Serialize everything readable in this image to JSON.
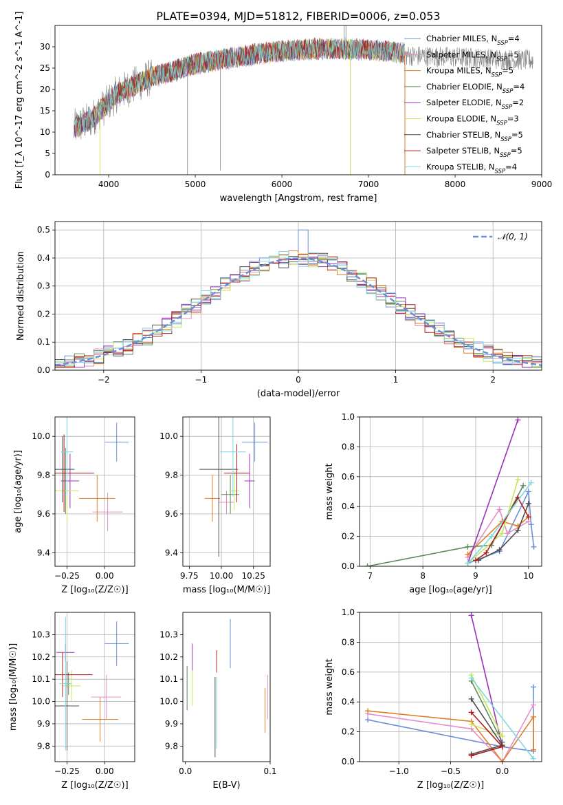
{
  "title": "PLATE=0394, MJD=51812, FIBERID=0006, z=0.053",
  "colors": {
    "Chabrier MILES": "#6a8fd9",
    "Salpeter MILES": "#e68ec8",
    "Kroupa MILES": "#e07f2a",
    "Chabrier ELODIE": "#5c8a5c",
    "Salpeter ELODIE": "#9b30b8",
    "Kroupa ELODIE": "#c8e65a",
    "Chabrier STELIB": "#4d4d4d",
    "Salpeter STELIB": "#b01a1a",
    "Kroupa STELIB": "#7fd8e0",
    "gray_spectrum": "#808080",
    "grid": "#b0b0b0"
  },
  "chart_data": [
    {
      "id": "spectrum",
      "type": "line",
      "xlabel": "wavelength [Angstrom, rest frame]",
      "ylabel": "Flux [f_λ 10^-17 erg cm^-2 s^-1 A^-1]",
      "xlim": [
        3380,
        9000
      ],
      "ylim": [
        0,
        35
      ],
      "xticks": [
        4000,
        5000,
        6000,
        7000,
        8000,
        9000
      ],
      "yticks": [
        0,
        5,
        10,
        15,
        20,
        25,
        30
      ],
      "grid": false,
      "legend_position": "right",
      "legend": [
        {
          "base": "Chabrier MILES, N",
          "sub": "SSP",
          "tail": "=4"
        },
        {
          "base": "Salpeter MILES, N",
          "sub": "SSP",
          "tail": "=5"
        },
        {
          "base": "Kroupa MILES, N",
          "sub": "SSP",
          "tail": "=5"
        },
        {
          "base": "Chabrier ELODIE, N",
          "sub": "SSP",
          "tail": "=4"
        },
        {
          "base": "Salpeter ELODIE, N",
          "sub": "SSP",
          "tail": "=2"
        },
        {
          "base": "Kroupa ELODIE, N",
          "sub": "SSP",
          "tail": "=3"
        },
        {
          "base": "Chabrier STELIB, N",
          "sub": "SSP",
          "tail": "=5"
        },
        {
          "base": "Salpeter STELIB, N",
          "sub": "SSP",
          "tail": "=5"
        },
        {
          "base": "Kroupa STELIB, N",
          "sub": "SSP",
          "tail": "=4"
        }
      ],
      "continuum": [
        [
          3600,
          11
        ],
        [
          3700,
          12
        ],
        [
          3800,
          13
        ],
        [
          3900,
          15
        ],
        [
          4000,
          17
        ],
        [
          4100,
          19
        ],
        [
          4200,
          20
        ],
        [
          4300,
          21
        ],
        [
          4500,
          23
        ],
        [
          4700,
          24
        ],
        [
          5000,
          26
        ],
        [
          5300,
          27
        ],
        [
          5600,
          28
        ],
        [
          6000,
          29
        ],
        [
          6400,
          29.5
        ],
        [
          6800,
          29.5
        ],
        [
          7200,
          29
        ],
        [
          7400,
          28.5
        ]
      ],
      "observed_end": 8900,
      "spikes": [
        [
          3900,
          0
        ],
        [
          4910,
          0
        ],
        [
          5290,
          1
        ],
        [
          6790,
          0
        ],
        [
          6740,
          35
        ],
        [
          6720,
          35
        ],
        [
          7420,
          0
        ]
      ]
    },
    {
      "id": "residuals",
      "type": "line",
      "xlabel": "(data-model)/error",
      "ylabel": "Normed distribution",
      "xlim": [
        -2.5,
        2.5
      ],
      "ylim": [
        0,
        0.53
      ],
      "xticks": [
        -2,
        -1,
        0,
        1,
        2
      ],
      "yticks": [
        0.0,
        0.1,
        0.2,
        0.3,
        0.4,
        0.5
      ],
      "grid": true,
      "legend_position": "top-right",
      "gaussian_label": "𝒩(0, 1)",
      "bin_width": 0.1,
      "peak_bin": {
        "x": 0.0,
        "value": 0.5
      }
    },
    {
      "id": "age_vs_Z",
      "type": "scatter",
      "xlabel": "Z [log₁₀(Z/Z☉)]",
      "ylabel": "age  [log₁₀(age/yr)]",
      "xlim": [
        -0.33,
        0.2
      ],
      "ylim": [
        9.33,
        10.1
      ],
      "xticks": [
        -0.25,
        0.0
      ],
      "yticks": [
        9.4,
        9.6,
        9.8,
        10.0
      ],
      "grid": true,
      "points": [
        {
          "series": "Chabrier MILES",
          "x": 0.08,
          "y": 9.97,
          "xerr": 0.08,
          "yerr": 0.1
        },
        {
          "series": "Salpeter MILES",
          "x": 0.02,
          "y": 9.61,
          "xerr": 0.1,
          "yerr": 0.1
        },
        {
          "series": "Kroupa MILES",
          "x": -0.05,
          "y": 9.68,
          "xerr": 0.12,
          "yerr": 0.12
        },
        {
          "series": "Chabrier ELODIE",
          "x": -0.26,
          "y": 9.77,
          "xerr": 0.02,
          "yerr": 0.17
        },
        {
          "series": "Salpeter ELODIE",
          "x": -0.23,
          "y": 9.77,
          "xerr": 0.06,
          "yerr": 0.14
        },
        {
          "series": "Kroupa ELODIE",
          "x": -0.25,
          "y": 9.72,
          "xerr": 0.08,
          "yerr": 0.16
        },
        {
          "series": "Chabrier STELIB",
          "x": -0.28,
          "y": 9.83,
          "xerr": 0.08,
          "yerr": 0.17
        },
        {
          "series": "Salpeter STELIB",
          "x": -0.27,
          "y": 9.81,
          "xerr": 0.2,
          "yerr": 0.2
        },
        {
          "series": "Kroupa STELIB",
          "x": -0.25,
          "y": 9.92,
          "xerr": 0.04,
          "yerr": 0.22
        }
      ]
    },
    {
      "id": "age_vs_mass",
      "type": "scatter",
      "xlabel": "mass [log₁₀(M/M☉)]",
      "ylabel": "",
      "xlim": [
        9.7,
        10.38
      ],
      "ylim": [
        9.33,
        10.1
      ],
      "xticks": [
        9.75,
        10.0,
        10.25
      ],
      "yticks": [
        9.4,
        9.6,
        9.8,
        10.0
      ],
      "grid": true,
      "points": [
        {
          "series": "Chabrier MILES",
          "x": 10.26,
          "y": 9.97,
          "xerr": 0.1,
          "yerr": 0.1
        },
        {
          "series": "Salpeter MILES",
          "x": 10.04,
          "y": 9.66,
          "xerr": 0.06,
          "yerr": 0.06
        },
        {
          "series": "Kroupa MILES",
          "x": 9.93,
          "y": 9.68,
          "xerr": 0.06,
          "yerr": 0.12
        },
        {
          "series": "Chabrier ELODIE",
          "x": 10.07,
          "y": 9.7,
          "xerr": 0.07,
          "yerr": 0.1
        },
        {
          "series": "Salpeter ELODIE",
          "x": 10.22,
          "y": 9.77,
          "xerr": 0.04,
          "yerr": 0.14
        },
        {
          "series": "Kroupa ELODIE",
          "x": 10.1,
          "y": 9.72,
          "xerr": 0.04,
          "yerr": 0.1
        },
        {
          "series": "Chabrier STELIB",
          "x": 9.98,
          "y": 9.83,
          "xerr": 0.15,
          "yerr": 0.45
        },
        {
          "series": "Salpeter STELIB",
          "x": 10.12,
          "y": 9.81,
          "xerr": 0.1,
          "yerr": 0.15
        },
        {
          "series": "Kroupa STELIB",
          "x": 10.09,
          "y": 9.92,
          "xerr": 0.1,
          "yerr": 0.23
        }
      ]
    },
    {
      "id": "weight_vs_age",
      "type": "line",
      "xlabel": "age  [log₁₀(age/yr)]",
      "ylabel": "mass weight",
      "xlim": [
        6.8,
        10.25
      ],
      "ylim": [
        0,
        1.0
      ],
      "xticks": [
        7,
        8,
        9,
        10
      ],
      "yticks": [
        0.0,
        0.2,
        0.4,
        0.6,
        0.8,
        1.0
      ],
      "grid": true,
      "series": [
        {
          "name": "Chabrier MILES",
          "points": [
            [
              8.85,
              0.02
            ],
            [
              9.45,
              0.1
            ],
            [
              10.0,
              0.5
            ],
            [
              10.05,
              0.28
            ],
            [
              10.1,
              0.13
            ]
          ]
        },
        {
          "name": "Salpeter MILES",
          "points": [
            [
              8.85,
              0.06
            ],
            [
              9.45,
              0.38
            ],
            [
              9.6,
              0.22
            ],
            [
              10.0,
              0.3
            ]
          ]
        },
        {
          "name": "Kroupa MILES",
          "points": [
            [
              8.85,
              0.08
            ],
            [
              9.5,
              0.3
            ],
            [
              9.8,
              0.27
            ],
            [
              10.0,
              0.33
            ]
          ]
        },
        {
          "name": "Chabrier ELODIE",
          "points": [
            [
              6.95,
              0.0
            ],
            [
              8.85,
              0.13
            ],
            [
              9.3,
              0.14
            ],
            [
              9.9,
              0.54
            ]
          ]
        },
        {
          "name": "Salpeter ELODIE",
          "points": [
            [
              8.85,
              0.02
            ],
            [
              9.8,
              0.98
            ]
          ]
        },
        {
          "name": "Kroupa ELODIE",
          "points": [
            [
              8.85,
              0.02
            ],
            [
              9.5,
              0.22
            ],
            [
              9.8,
              0.58
            ]
          ]
        },
        {
          "name": "Chabrier STELIB",
          "points": [
            [
              9.05,
              0.04
            ],
            [
              9.45,
              0.11
            ],
            [
              9.8,
              0.24
            ],
            [
              10.0,
              0.42
            ]
          ]
        },
        {
          "name": "Salpeter STELIB",
          "points": [
            [
              9.0,
              0.04
            ],
            [
              9.2,
              0.09
            ],
            [
              9.8,
              0.46
            ],
            [
              10.0,
              0.33
            ]
          ]
        },
        {
          "name": "Kroupa STELIB",
          "points": [
            [
              8.85,
              0.02
            ],
            [
              9.3,
              0.2
            ],
            [
              10.05,
              0.56
            ]
          ]
        }
      ]
    },
    {
      "id": "mass_vs_Z",
      "type": "scatter",
      "xlabel": "Z [log₁₀(Z/Z☉)]",
      "ylabel": "mass [log₁₀(M/M☉)]",
      "xlim": [
        -0.33,
        0.2
      ],
      "ylim": [
        9.73,
        10.4
      ],
      "xticks": [
        -0.25,
        0.0
      ],
      "yticks": [
        9.8,
        9.9,
        10.0,
        10.1,
        10.2,
        10.3
      ],
      "grid": true,
      "points": [
        {
          "series": "Chabrier MILES",
          "x": 0.08,
          "y": 10.26,
          "xerr": 0.08,
          "yerr": 0.1
        },
        {
          "series": "Salpeter MILES",
          "x": 0.01,
          "y": 10.02,
          "xerr": 0.1,
          "yerr": 0.1
        },
        {
          "series": "Kroupa MILES",
          "x": -0.03,
          "y": 9.92,
          "xerr": 0.12,
          "yerr": 0.1
        },
        {
          "series": "Chabrier ELODIE",
          "x": -0.24,
          "y": 10.08,
          "xerr": 0.02,
          "yerr": 0.05
        },
        {
          "series": "Salpeter ELODIE",
          "x": -0.26,
          "y": 10.22,
          "xerr": 0.06,
          "yerr": 0.04
        },
        {
          "series": "Kroupa ELODIE",
          "x": -0.22,
          "y": 10.07,
          "xerr": 0.06,
          "yerr": 0.07
        },
        {
          "series": "Chabrier STELIB",
          "x": -0.25,
          "y": 9.98,
          "xerr": 0.08,
          "yerr": 0.2
        },
        {
          "series": "Salpeter STELIB",
          "x": -0.28,
          "y": 10.12,
          "xerr": 0.2,
          "yerr": 0.1
        },
        {
          "series": "Kroupa STELIB",
          "x": -0.26,
          "y": 10.08,
          "xerr": 0.04,
          "yerr": 0.3
        }
      ]
    },
    {
      "id": "mass_vs_ebv",
      "type": "scatter",
      "xlabel": "E(B-V)",
      "ylabel": "",
      "xlim": [
        -0.003,
        0.1
      ],
      "ylim": [
        9.73,
        10.4
      ],
      "xticks": [
        0.0,
        0.1
      ],
      "yticks": [
        9.8,
        9.9,
        10.0,
        10.1,
        10.2,
        10.3
      ],
      "grid": false,
      "points": [
        {
          "series": "Chabrier MILES",
          "x": 0.053,
          "y": 10.26,
          "xerr": 0.0,
          "yerr": 0.11
        },
        {
          "series": "Salpeter MILES",
          "x": 0.097,
          "y": 10.02,
          "xerr": 0.0,
          "yerr": 0.1
        },
        {
          "series": "Kroupa MILES",
          "x": 0.094,
          "y": 9.96,
          "xerr": 0.0,
          "yerr": 0.1
        },
        {
          "series": "Chabrier ELODIE",
          "x": 0.002,
          "y": 10.06,
          "xerr": 0.0,
          "yerr": 0.1
        },
        {
          "series": "Salpeter ELODIE",
          "x": 0.008,
          "y": 10.2,
          "xerr": 0.0,
          "yerr": 0.06
        },
        {
          "series": "Kroupa ELODIE",
          "x": 0.008,
          "y": 10.06,
          "xerr": 0.0,
          "yerr": 0.08
        },
        {
          "series": "Chabrier STELIB",
          "x": 0.035,
          "y": 9.93,
          "xerr": 0.0,
          "yerr": 0.18
        },
        {
          "series": "Salpeter STELIB",
          "x": 0.037,
          "y": 10.18,
          "xerr": 0.0,
          "yerr": 0.05
        },
        {
          "series": "Kroupa STELIB",
          "x": 0.037,
          "y": 9.95,
          "xerr": 0.0,
          "yerr": 0.16
        }
      ]
    },
    {
      "id": "weight_vs_Z",
      "type": "line",
      "xlabel": "Z [log₁₀(Z/Z☉)]",
      "ylabel": "mass weight",
      "xlim": [
        -1.38,
        0.38
      ],
      "ylim": [
        0,
        1.0
      ],
      "xticks": [
        -1.0,
        -0.5,
        0.0
      ],
      "yticks": [
        0.0,
        0.2,
        0.4,
        0.6,
        0.8,
        1.0
      ],
      "grid": true,
      "series": [
        {
          "name": "Chabrier MILES",
          "points": [
            [
              -1.3,
              0.28
            ],
            [
              0.0,
              0.1
            ],
            [
              0.3,
              0.07
            ],
            [
              0.3,
              0.5
            ]
          ]
        },
        {
          "name": "Salpeter MILES",
          "points": [
            [
              -1.3,
              0.32
            ],
            [
              -0.3,
              0.22
            ],
            [
              0.0,
              0.0
            ],
            [
              0.3,
              0.38
            ]
          ]
        },
        {
          "name": "Kroupa MILES",
          "points": [
            [
              -1.3,
              0.34
            ],
            [
              -0.3,
              0.27
            ],
            [
              0.0,
              0.0
            ],
            [
              0.3,
              0.3
            ],
            [
              0.3,
              0.08
            ]
          ]
        },
        {
          "name": "Chabrier ELODIE",
          "points": [
            [
              -0.3,
              0.54
            ],
            [
              0.0,
              0.13
            ]
          ]
        },
        {
          "name": "Salpeter ELODIE",
          "points": [
            [
              -0.3,
              0.98
            ],
            [
              0.0,
              0.1
            ]
          ]
        },
        {
          "name": "Kroupa ELODIE",
          "points": [
            [
              -0.3,
              0.58
            ],
            [
              0.0,
              0.17
            ],
            [
              -0.3,
              0.25
            ]
          ]
        },
        {
          "name": "Chabrier STELIB",
          "points": [
            [
              -0.3,
              0.42
            ],
            [
              0.0,
              0.11
            ],
            [
              -0.3,
              0.05
            ]
          ]
        },
        {
          "name": "Salpeter STELIB",
          "points": [
            [
              -0.3,
              0.33
            ],
            [
              0.0,
              0.1
            ],
            [
              -0.3,
              0.04
            ]
          ]
        },
        {
          "name": "Kroupa STELIB",
          "points": [
            [
              -0.3,
              0.56
            ],
            [
              0.3,
              0.02
            ]
          ]
        }
      ]
    }
  ]
}
